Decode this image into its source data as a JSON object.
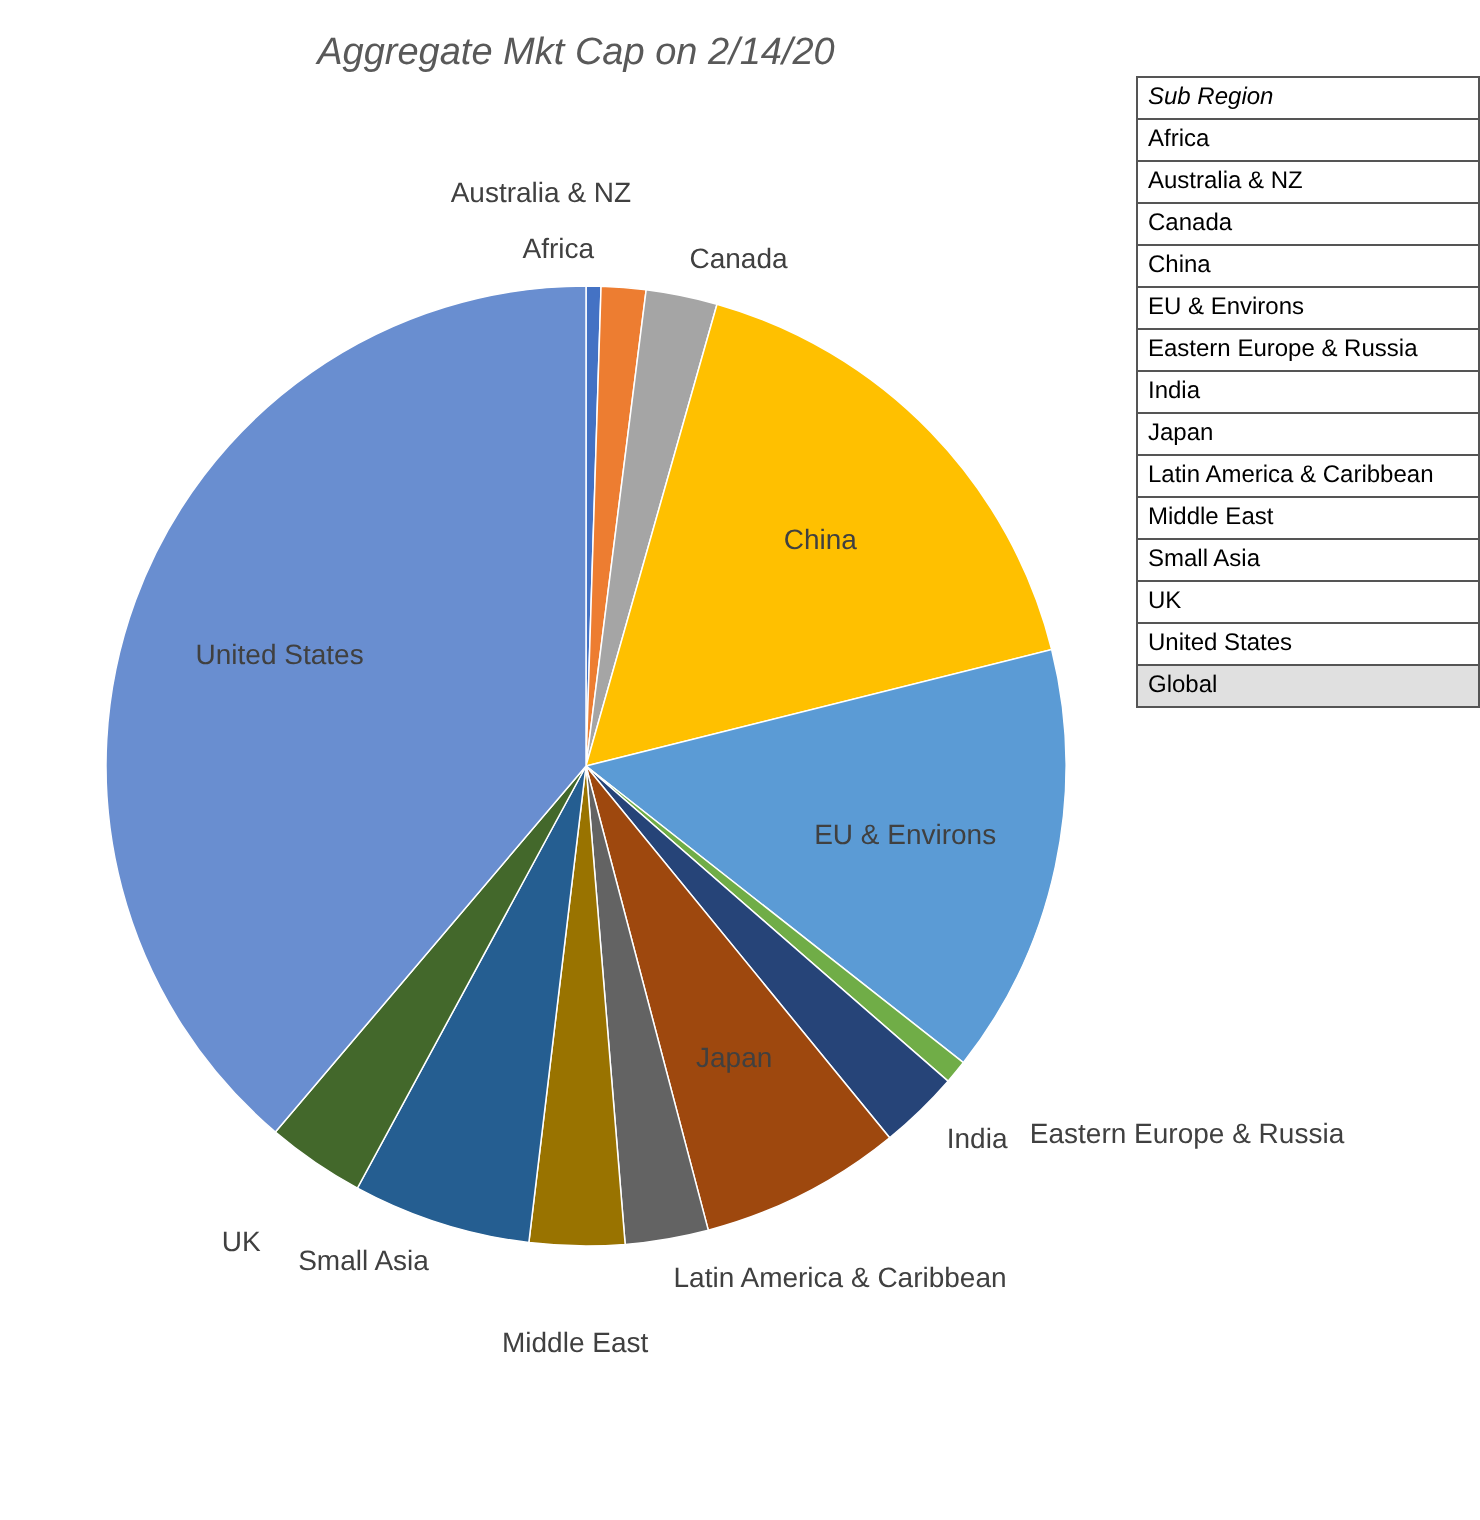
{
  "chart_data": [
    {
      "type": "pie",
      "title": "Aggregate Mkt Cap on 2/14/20",
      "categories": [
        "Africa",
        "Australia & NZ",
        "Canada",
        "China",
        "EU & Environs",
        "Eastern Europe & Russia",
        "India",
        "Japan",
        "Latin America & Caribbean",
        "Middle East",
        "Small Asia",
        "UK",
        "United States"
      ],
      "values": [
        0.5,
        1.5,
        2.4,
        16.7,
        14.5,
        0.8,
        2.7,
        6.8,
        2.8,
        3.2,
        6.0,
        3.3,
        38.8
      ],
      "colors": [
        "#4472c4",
        "#ed7d31",
        "#a5a5a5",
        "#ffc000",
        "#5b9bd5",
        "#70ad47",
        "#264478",
        "#9e480e",
        "#636363",
        "#997300",
        "#255e91",
        "#43682b",
        "#698ed0"
      ]
    },
    {
      "type": "other",
      "title": "Sub Region",
      "annotations": [
        "Africa",
        "Australia & NZ",
        "Canada",
        "China",
        "EU & Environs",
        "Eastern Europe & Russia",
        "India",
        "Japan",
        "Latin America & Caribbean",
        "Middle East",
        "Small Asia",
        "UK",
        "United States",
        "Global"
      ]
    }
  ]
}
